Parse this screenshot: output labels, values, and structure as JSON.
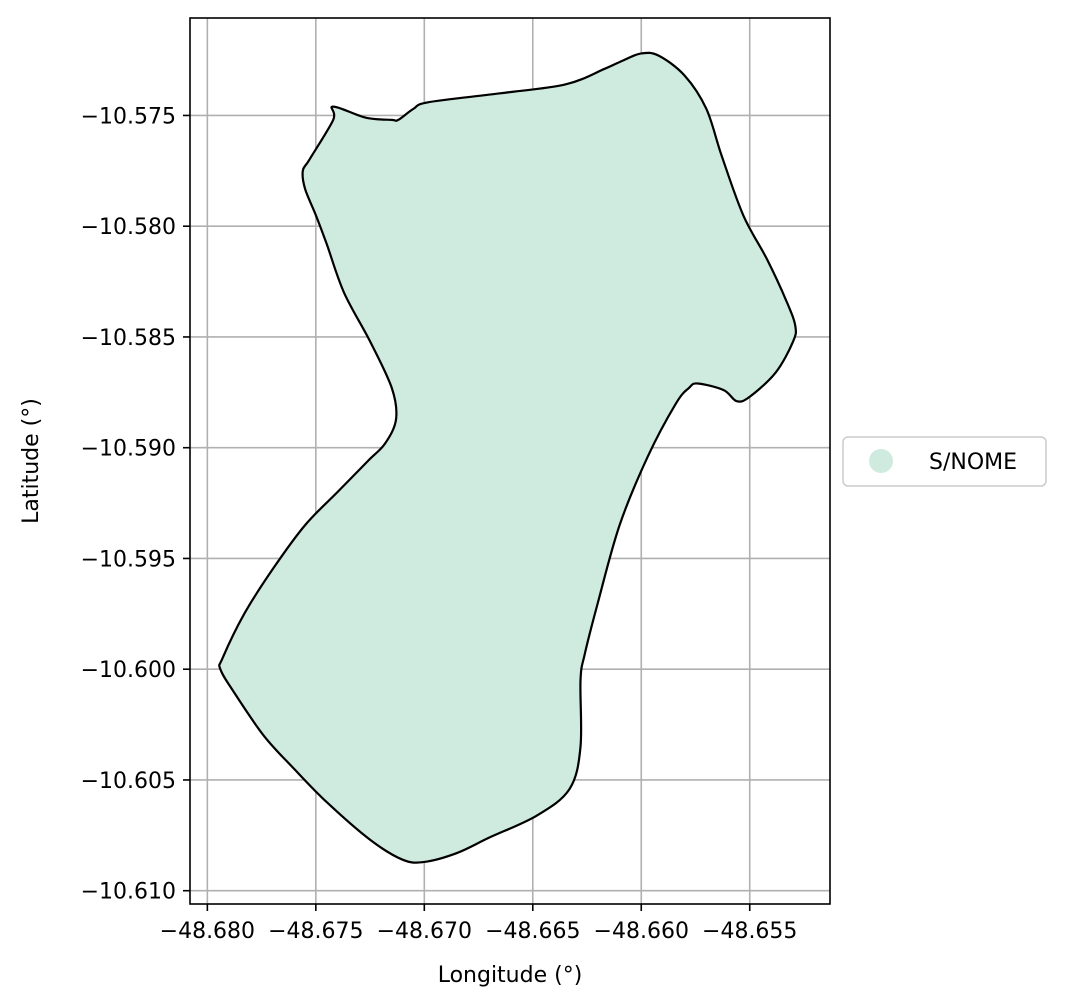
{
  "chart_data": {
    "type": "map",
    "title": "",
    "xlabel": "Longitude (°)",
    "ylabel": "Latitude (°)",
    "xlim": [
      -48.6808,
      -48.6513
    ],
    "ylim": [
      -10.6106,
      -10.5706
    ],
    "x_ticks": [
      -48.68,
      -48.675,
      -48.67,
      -48.665,
      -48.66,
      -48.655
    ],
    "x_tick_labels": [
      "−48.680",
      "−48.675",
      "−48.670",
      "−48.665",
      "−48.660",
      "−48.655"
    ],
    "y_ticks": [
      -10.575,
      -10.58,
      -10.585,
      -10.59,
      -10.595,
      -10.6,
      -10.605,
      -10.61
    ],
    "y_tick_labels": [
      "−10.575",
      "−10.580",
      "−10.585",
      "−10.590",
      "−10.595",
      "−10.600",
      "−10.605",
      "−10.610"
    ],
    "grid": true,
    "legend_position": "center-right, outside plot",
    "series": [
      {
        "name": "S/NOME",
        "color": "#cfeadf",
        "edge_color": "#000000",
        "polygon": [
          [
            -48.6742,
            -10.5746
          ],
          [
            -48.6727,
            -10.5751
          ],
          [
            -48.6715,
            -10.5752
          ],
          [
            -48.6712,
            -10.5752
          ],
          [
            -48.6705,
            -10.5747
          ],
          [
            -48.6698,
            -10.5744
          ],
          [
            -48.6665,
            -10.574
          ],
          [
            -48.6635,
            -10.5736
          ],
          [
            -48.6617,
            -10.5729
          ],
          [
            -48.6608,
            -10.5725
          ],
          [
            -48.66,
            -10.5722
          ],
          [
            -48.6592,
            -10.5723
          ],
          [
            -48.658,
            -10.5732
          ],
          [
            -48.657,
            -10.5747
          ],
          [
            -48.6563,
            -10.5768
          ],
          [
            -48.6553,
            -10.5795
          ],
          [
            -48.6542,
            -10.5815
          ],
          [
            -48.6533,
            -10.5834
          ],
          [
            -48.6529,
            -10.5845
          ],
          [
            -48.653,
            -10.5852
          ],
          [
            -48.6538,
            -10.5866
          ],
          [
            -48.655,
            -10.5877
          ],
          [
            -48.6556,
            -10.5879
          ],
          [
            -48.6562,
            -10.5874
          ],
          [
            -48.6574,
            -10.5871
          ],
          [
            -48.6578,
            -10.5873
          ],
          [
            -48.6584,
            -10.588
          ],
          [
            -48.6597,
            -10.5904
          ],
          [
            -48.661,
            -10.5935
          ],
          [
            -48.662,
            -10.597
          ],
          [
            -48.6626,
            -10.5993
          ],
          [
            -48.6628,
            -10.6005
          ],
          [
            -48.6628,
            -10.6035
          ],
          [
            -48.6633,
            -10.6054
          ],
          [
            -48.6648,
            -10.6066
          ],
          [
            -48.667,
            -10.6076
          ],
          [
            -48.6685,
            -10.6083
          ],
          [
            -48.67,
            -10.6087
          ],
          [
            -48.671,
            -10.6086
          ],
          [
            -48.6725,
            -10.6077
          ],
          [
            -48.6745,
            -10.606
          ],
          [
            -48.676,
            -10.6045
          ],
          [
            -48.6774,
            -10.603
          ],
          [
            -48.6788,
            -10.601
          ],
          [
            -48.6794,
            -10.6
          ],
          [
            -48.6793,
            -10.5995
          ],
          [
            -48.6783,
            -10.5975
          ],
          [
            -48.677,
            -10.5955
          ],
          [
            -48.6755,
            -10.5935
          ],
          [
            -48.674,
            -10.592
          ],
          [
            -48.6726,
            -10.5906
          ],
          [
            -48.6718,
            -10.5898
          ],
          [
            -48.6713,
            -10.5887
          ],
          [
            -48.6715,
            -10.5873
          ],
          [
            -48.6725,
            -10.5852
          ],
          [
            -48.6737,
            -10.583
          ],
          [
            -48.6745,
            -10.5808
          ],
          [
            -48.675,
            -10.5795
          ],
          [
            -48.6755,
            -10.5783
          ],
          [
            -48.6756,
            -10.5775
          ],
          [
            -48.6753,
            -10.577
          ],
          [
            -48.6742,
            -10.5752
          ]
        ]
      }
    ]
  }
}
